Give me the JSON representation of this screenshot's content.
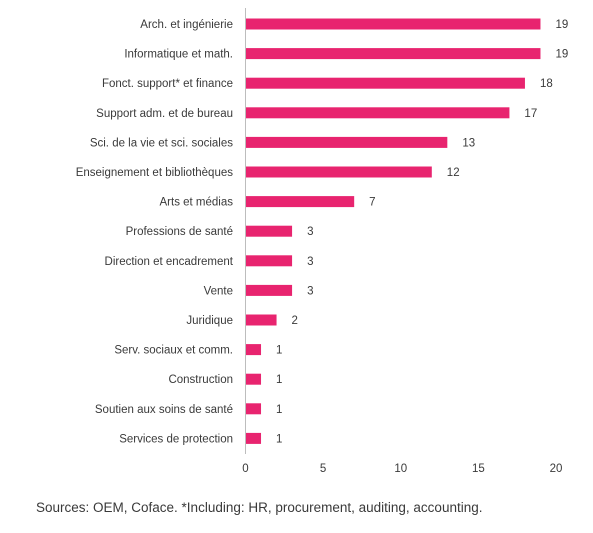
{
  "chart_data": {
    "type": "bar",
    "orientation": "horizontal",
    "categories": [
      "Arch. et ingénierie",
      "Informatique et math.",
      "Fonct. support* et finance",
      "Support adm. et de bureau",
      "Sci. de la vie et sci. sociales",
      "Enseignement et bibliothèques",
      "Arts et médias",
      "Professions de santé",
      "Direction et encadrement",
      "Vente",
      "Juridique",
      "Serv. sociaux et comm.",
      "Construction",
      "Soutien aux soins de santé",
      "Services de protection"
    ],
    "values": [
      19,
      19,
      18,
      17,
      13,
      12,
      7,
      3,
      3,
      3,
      2,
      1,
      1,
      1,
      1
    ],
    "xlim": [
      0,
      20
    ],
    "xticks": [
      0,
      5,
      10,
      15,
      20
    ],
    "grid": false,
    "bar_color": "#e8246f",
    "data_labels": true
  },
  "source_note": "Sources: OEM, Coface. *Including: HR, procurement, auditing, accounting."
}
